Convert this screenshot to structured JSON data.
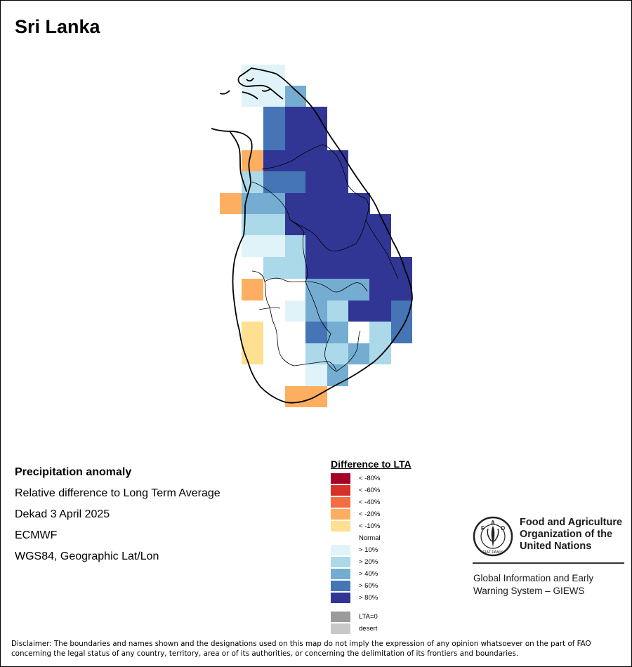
{
  "map": {
    "country": "Sri Lanka",
    "info": {
      "title": "Precipitation anomaly",
      "subtitle": "Relative difference to Long Term Average",
      "period": "Dekad 3 April 2025",
      "model": "ECMWF",
      "projection": "WGS84, Geographic Lat/Lon"
    },
    "legend": {
      "title": "Difference to LTA",
      "items": [
        {
          "label": "< -80%",
          "color": "#a50026"
        },
        {
          "label": "< -60%",
          "color": "#d73027"
        },
        {
          "label": "< -40%",
          "color": "#f46d43"
        },
        {
          "label": "< -20%",
          "color": "#fdae61"
        },
        {
          "label": "< -10%",
          "color": "#fee090"
        },
        {
          "label": "Normal",
          "color": "#ffffff"
        },
        {
          "label": "> 10%",
          "color": "#e0f3f8"
        },
        {
          "label": "> 20%",
          "color": "#abd9e9"
        },
        {
          "label": "> 40%",
          "color": "#74add1"
        },
        {
          "label": "> 60%",
          "color": "#4575b4"
        },
        {
          "label": "> 80%",
          "color": "#313695"
        }
      ],
      "extra": [
        {
          "label": "LTA=0",
          "color": "#9b9b9b"
        },
        {
          "label": "desert",
          "color": "#c8c8c8"
        }
      ]
    },
    "org": {
      "logo_text": "FAO",
      "logo_motto": "FIAT PANIS",
      "name_lines": [
        "Food and Agriculture",
        "Organization of the",
        "United Nations"
      ],
      "program_lines": [
        "Global Information and Early",
        "Warning System – GIEWS"
      ]
    },
    "disclaimer": "Disclaimer: The boundaries and names shown and the designations used on this map do not imply the expression of any opinion whatsoever on the part of FAO concerning the legal status of any country, territory, area or of its authorities, or concerning the delimitation of its frontiers and boundaries."
  }
}
